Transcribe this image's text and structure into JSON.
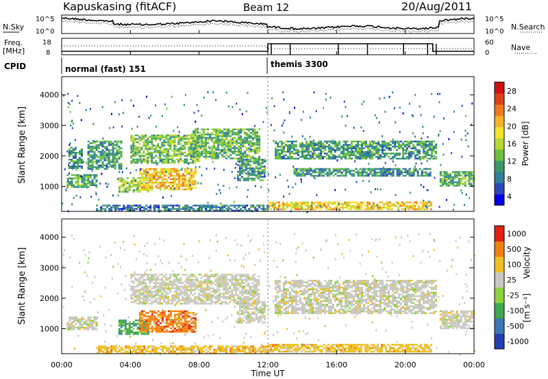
{
  "header": {
    "station": "Kapuskasing (fitACF)",
    "beam": "Beam 12",
    "date": "20/Aug/2011"
  },
  "noise_panel": {
    "left_label": "N.Sky",
    "right_label": "N.Search",
    "ytick_top": "10^5",
    "ytick_bottom": "10^0"
  },
  "freq_panel": {
    "left_label_1": "Freq.",
    "left_label_2": "[MHz]",
    "right_label": "Nave",
    "left_ticks": [
      "18",
      "8"
    ],
    "right_ticks": [
      "60",
      "0"
    ]
  },
  "cpid": {
    "label": "CPID",
    "segments": [
      {
        "name": "normal (fast) 151",
        "start_hour": 0
      },
      {
        "name": "themis 3300",
        "start_hour": 12
      }
    ]
  },
  "x_axis": {
    "label": "Time UT",
    "ticks": [
      "00:00",
      "04:00",
      "08:00",
      "12:00",
      "16:00",
      "20:00",
      "00:00"
    ],
    "range_hours": [
      0,
      24
    ]
  },
  "chart_data": [
    {
      "type": "heatmap",
      "name": "power",
      "ylabel": "Slant Range [km]",
      "yticks": [
        1000,
        2000,
        3000,
        4000
      ],
      "ylim": [
        180,
        4600
      ],
      "colorbar": {
        "label": "Power [dB]",
        "ticks": [
          "28",
          "24",
          "20",
          "16",
          "12",
          "8",
          "4"
        ],
        "range": [
          0,
          30
        ],
        "colors": [
          "#0000e8",
          "#2c47b8",
          "#2f7f9a",
          "#3a9a6a",
          "#6cc040",
          "#b5d832",
          "#f5e22a",
          "#f7b22a",
          "#f0781e",
          "#e0401a",
          "#d01010"
        ]
      },
      "echo_regions": [
        {
          "t0": 0.3,
          "t1": 2.0,
          "r0": 1000,
          "r1": 1400,
          "val": 10
        },
        {
          "t0": 0.4,
          "t1": 1.2,
          "r0": 1600,
          "r1": 2300,
          "val": 8
        },
        {
          "t0": 1.5,
          "t1": 3.5,
          "r0": 1600,
          "r1": 2500,
          "val": 9
        },
        {
          "t0": 4.0,
          "t1": 8.0,
          "r0": 1800,
          "r1": 2700,
          "val": 12
        },
        {
          "t0": 7.5,
          "t1": 11.5,
          "r0": 1900,
          "r1": 2900,
          "val": 11
        },
        {
          "t0": 3.3,
          "t1": 5.0,
          "r0": 800,
          "r1": 1300,
          "val": 14
        },
        {
          "t0": 4.5,
          "t1": 7.8,
          "r0": 900,
          "r1": 1600,
          "val": 20
        },
        {
          "t0": 10.2,
          "t1": 11.8,
          "r0": 1200,
          "r1": 1900,
          "val": 9
        },
        {
          "t0": 12.4,
          "t1": 21.8,
          "r0": 1900,
          "r1": 2500,
          "val": 9
        },
        {
          "t0": 13.5,
          "t1": 21.5,
          "r0": 1350,
          "r1": 1600,
          "val": 8
        },
        {
          "t0": 22.0,
          "t1": 24.0,
          "r0": 1000,
          "r1": 1500,
          "val": 11
        },
        {
          "t0": 12.0,
          "t1": 21.5,
          "r0": 250,
          "r1": 500,
          "val": 19
        },
        {
          "t0": 2.0,
          "t1": 12.0,
          "r0": 220,
          "r1": 400,
          "val": 6
        }
      ]
    },
    {
      "type": "heatmap",
      "name": "velocity",
      "ylabel": "Slant Range [km]",
      "yticks": [
        1000,
        2000,
        3000,
        4000
      ],
      "ylim": [
        180,
        4600
      ],
      "colorbar": {
        "label_main": "Velocity",
        "label_unit": "[m s⁻¹]",
        "ticks": [
          "1000",
          "500",
          "100",
          "25",
          "-25",
          "-100",
          "-500",
          "-1000"
        ],
        "colors": [
          "#1f3fb0",
          "#3d78b8",
          "#3ea84a",
          "#8dd040",
          "#c8c8c0",
          "#f0c020",
          "#f08010",
          "#e02010"
        ]
      },
      "echo_regions": [
        {
          "t0": 0.3,
          "t1": 2.0,
          "r0": 1000,
          "r1": 1400,
          "cls": 4
        },
        {
          "t0": 4.0,
          "t1": 11.5,
          "r0": 1800,
          "r1": 2800,
          "cls": 4
        },
        {
          "t0": 3.3,
          "t1": 5.0,
          "r0": 800,
          "r1": 1300,
          "cls": 2
        },
        {
          "t0": 4.5,
          "t1": 7.8,
          "r0": 900,
          "r1": 1600,
          "cls": 6
        },
        {
          "t0": 10.2,
          "t1": 11.8,
          "r0": 1200,
          "r1": 1900,
          "cls": 4
        },
        {
          "t0": 12.4,
          "t1": 21.8,
          "r0": 1500,
          "r1": 2600,
          "cls": 4
        },
        {
          "t0": 22.0,
          "t1": 24.0,
          "r0": 1000,
          "r1": 1600,
          "cls": 4
        },
        {
          "t0": 2.0,
          "t1": 12.0,
          "r0": 220,
          "r1": 450,
          "cls": 5
        },
        {
          "t0": 12.0,
          "t1": 21.5,
          "r0": 250,
          "r1": 500,
          "cls": 5
        }
      ]
    }
  ]
}
